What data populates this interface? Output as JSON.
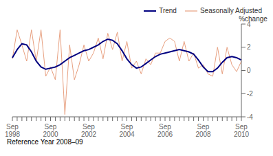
{
  "chart_data": {
    "type": "line",
    "y_label": "%change",
    "annotations": [
      "Reference Year 2008–09"
    ],
    "legend": "upper right",
    "categories": [
      "Sep\n1998",
      null,
      null,
      null,
      null,
      null,
      null,
      null,
      "Sep\n2000",
      null,
      null,
      null,
      null,
      null,
      null,
      null,
      "Sep\n2002",
      null,
      null,
      null,
      null,
      null,
      null,
      null,
      "Sep\n2004",
      null,
      null,
      null,
      null,
      null,
      null,
      null,
      "Sep\n2006",
      null,
      null,
      null,
      null,
      null,
      null,
      null,
      "Sep\n2008",
      null,
      null,
      null,
      null,
      null,
      null,
      null,
      "Sep\n2010"
    ],
    "ylim": [
      -4,
      4
    ],
    "yticks": [
      -4,
      -2,
      0,
      2,
      4
    ],
    "series": [
      {
        "name": "Trend",
        "color": "#000080",
        "values": [
          1.1,
          1.8,
          2.3,
          2.2,
          1.6,
          0.8,
          0.3,
          0.1,
          0.2,
          0.3,
          0.5,
          0.8,
          1.1,
          1.3,
          1.5,
          1.7,
          1.8,
          2.0,
          2.2,
          2.5,
          2.7,
          2.6,
          2.3,
          1.7,
          1.0,
          0.5,
          0.2,
          0.3,
          0.6,
          0.9,
          1.2,
          1.4,
          1.5,
          1.6,
          1.7,
          1.8,
          1.7,
          1.6,
          1.4,
          0.9,
          0.3,
          -0.1,
          -0.1,
          0.2,
          0.7,
          1.1,
          1.2,
          1.1,
          0.9
        ]
      },
      {
        "name": "Seasonally Adjusted",
        "color": "#E8A080",
        "values": [
          1.0,
          3.5,
          2.2,
          0.8,
          3.5,
          0.8,
          3.5,
          -0.5,
          0.3,
          -0.8,
          3.5,
          -3.8,
          2.2,
          -0.8,
          0.5,
          2.2,
          0.8,
          1.5,
          2.8,
          1.0,
          3.2,
          1.8,
          3.3,
          0.8,
          2.5,
          0.2,
          0.8,
          -0.3,
          1.0,
          0.5,
          1.5,
          1.5,
          2.5,
          2.8,
          2.5,
          0.8,
          2.5,
          0.8,
          1.5,
          0.2,
          0.5,
          -0.3,
          -0.5,
          2.0,
          -0.3,
          2.0,
          0.5,
          -0.1,
          0.8
        ]
      }
    ]
  }
}
